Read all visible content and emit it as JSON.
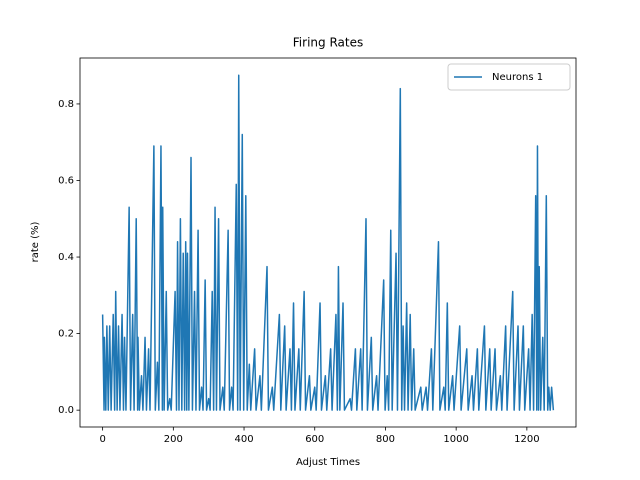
{
  "chart_data": {
    "type": "line",
    "title": "Firing Rates",
    "xlabel": "Adjust Times",
    "ylabel": "rate (%)",
    "x": [
      0,
      4,
      5,
      9,
      12,
      16,
      20,
      24,
      30,
      34,
      37,
      41,
      45,
      49,
      55,
      59,
      62,
      66,
      75,
      79,
      85,
      89,
      95,
      99,
      100,
      104,
      110,
      114,
      120,
      124,
      130,
      134,
      145,
      149,
      155,
      159,
      165,
      169,
      170,
      174,
      180,
      184,
      190,
      194,
      205,
      209,
      212,
      216,
      220,
      224,
      228,
      232,
      235,
      238,
      240,
      244,
      250,
      254,
      260,
      264,
      270,
      274,
      280,
      284,
      290,
      294,
      300,
      304,
      310,
      314,
      318,
      322,
      328,
      332,
      340,
      344,
      355,
      359,
      365,
      369,
      378,
      382,
      385,
      389,
      395,
      399,
      405,
      409,
      415,
      419,
      430,
      434,
      445,
      449,
      465,
      469,
      480,
      484,
      500,
      504,
      515,
      519,
      530,
      534,
      540,
      544,
      555,
      559,
      570,
      574,
      585,
      589,
      600,
      604,
      615,
      619,
      630,
      634,
      645,
      649,
      660,
      664,
      667,
      671,
      680,
      684,
      700,
      704,
      715,
      719,
      730,
      734,
      745,
      749,
      760,
      764,
      775,
      779,
      795,
      799,
      805,
      809,
      815,
      819,
      830,
      834,
      842,
      846,
      850,
      854,
      860,
      864,
      870,
      874,
      880,
      884,
      900,
      904,
      915,
      919,
      930,
      934,
      950,
      954,
      965,
      969,
      975,
      979,
      990,
      994,
      1010,
      1014,
      1030,
      1034,
      1045,
      1049,
      1060,
      1064,
      1080,
      1084,
      1095,
      1099,
      1110,
      1114,
      1125,
      1129,
      1140,
      1144,
      1160,
      1164,
      1175,
      1179,
      1190,
      1194,
      1205,
      1209,
      1215,
      1219,
      1225,
      1228,
      1230,
      1233,
      1235,
      1239,
      1245,
      1249,
      1255,
      1259,
      1262,
      1266,
      1270,
      1275
    ],
    "series": [
      {
        "name": "Neurons 1",
        "color": "#1f77b4",
        "values": [
          0.25,
          0,
          0.19,
          0,
          0.22,
          0,
          0.22,
          0,
          0.25,
          0,
          0.31,
          0,
          0.22,
          0,
          0.25,
          0,
          0.19,
          0,
          0.53,
          0,
          0.25,
          0,
          0.5,
          0,
          0.19,
          0,
          0.09,
          0,
          0.19,
          0,
          0.16,
          0,
          0.69,
          0,
          0.125,
          0,
          0.69,
          0,
          0.53,
          0,
          0.31,
          0,
          0.03,
          0,
          0.31,
          0,
          0.44,
          0,
          0.5,
          0,
          0.41,
          0,
          0.44,
          0,
          0.41,
          0,
          0.66,
          0,
          0.31,
          0,
          0.47,
          0,
          0.06,
          0,
          0.34,
          0,
          0.03,
          0,
          0.31,
          0,
          0.53,
          0,
          0.5,
          0,
          0.06,
          0,
          0.47,
          0,
          0.06,
          0,
          0.59,
          0,
          0.875,
          0,
          0.72,
          0,
          0.56,
          0,
          0.12,
          0,
          0.16,
          0,
          0.09,
          0,
          0.375,
          0,
          0.06,
          0,
          0.25,
          0,
          0.22,
          0,
          0.16,
          0,
          0.28,
          0,
          0.16,
          0,
          0.31,
          0,
          0.09,
          0,
          0.06,
          0,
          0.28,
          0,
          0.09,
          0,
          0.16,
          0,
          0.25,
          0,
          0.375,
          0,
          0.28,
          0,
          0.03,
          0,
          0.16,
          0,
          0.16,
          0,
          0.5,
          0,
          0.19,
          0,
          0.09,
          0,
          0.34,
          0,
          0.09,
          0,
          0.47,
          0,
          0.41,
          0,
          0.84,
          0,
          0.22,
          0,
          0.28,
          0,
          0.25,
          0,
          0.16,
          0,
          0.06,
          0,
          0.06,
          0,
          0.16,
          0,
          0.44,
          0,
          0.06,
          0,
          0.28,
          0,
          0.09,
          0,
          0.22,
          0,
          0.16,
          0,
          0.09,
          0,
          0.16,
          0,
          0.22,
          0,
          0.16,
          0,
          0.16,
          0,
          0.09,
          0,
          0.22,
          0,
          0.31,
          0,
          0.22,
          0,
          0.22,
          0,
          0.16,
          0,
          0.25,
          0,
          0.56,
          0,
          0.69,
          0,
          0.375,
          0,
          0.19,
          0,
          0.56,
          0,
          0.06,
          0,
          0.06,
          0
        ]
      }
    ],
    "xlim": [
      -64,
      1339
    ],
    "ylim": [
      -0.044,
      0.92
    ],
    "xticks": [
      0,
      200,
      400,
      600,
      800,
      1000,
      1200
    ],
    "yticks": [
      {
        "value": 0,
        "label": "0.0"
      },
      0.2,
      0.4,
      0.6,
      0.8
    ],
    "legend": "upper right"
  }
}
